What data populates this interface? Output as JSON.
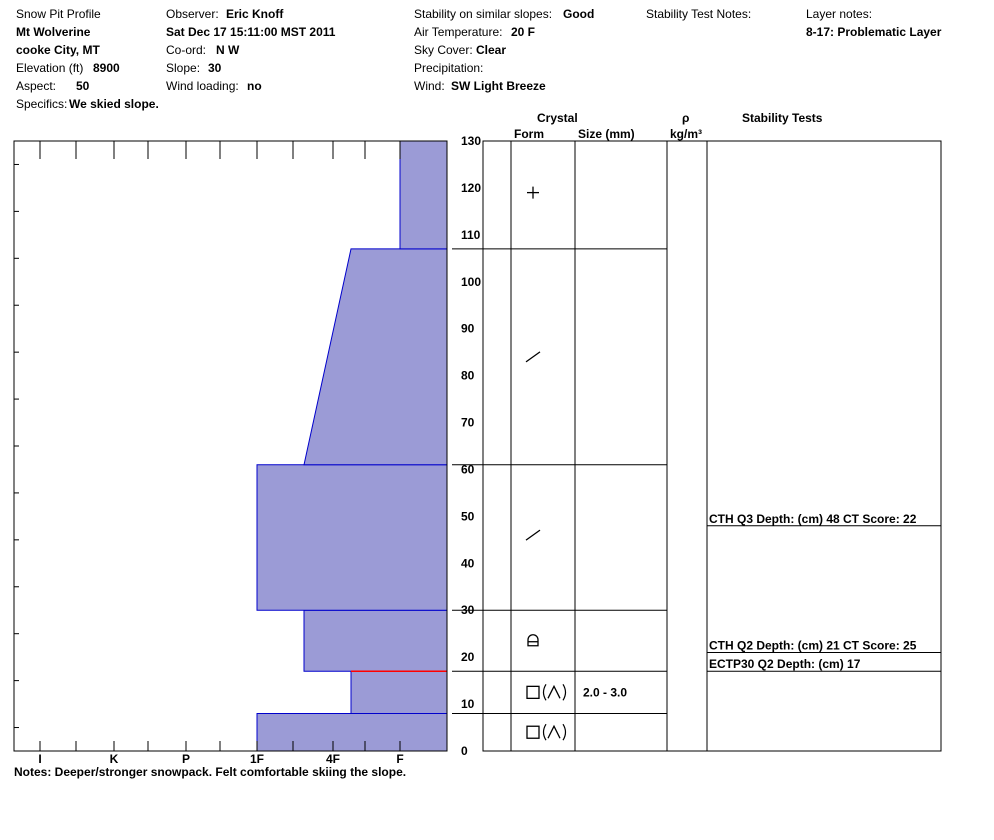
{
  "header": {
    "col1": {
      "title": "Snow Pit Profile",
      "location": "Mt Wolverine",
      "region": "cooke City, MT",
      "elevation_label": "Elevation (ft)",
      "elevation_value": "8900",
      "aspect_label": "Aspect:",
      "aspect_value": "50",
      "specifics_label": "Specifics:",
      "specifics_value": "We skied slope."
    },
    "col2": {
      "observer_label": "Observer:",
      "observer_value": "Eric Knoff",
      "date": "Sat Dec 17 15:11:00 MST 2011",
      "coord_label": "Co-ord:",
      "coord_value": "N  W",
      "slope_label": "Slope:",
      "slope_value": "30",
      "wind_loading_label": "Wind loading:",
      "wind_loading_value": "no"
    },
    "col3": {
      "stability_label": "Stability on similar slopes:",
      "stability_value": "Good",
      "air_temp_label": "Air Temperature:",
      "air_temp_value": "20 F",
      "sky_label": "Sky Cover:",
      "sky_value": "Clear",
      "precip_label": "Precipitation:",
      "wind_label": "Wind:",
      "wind_value": "SW Light Breeze"
    },
    "col4": {
      "stability_test_notes_label": "Stability Test Notes:"
    },
    "col5": {
      "layer_notes_label": "Layer notes:",
      "layer_note_1": "8-17: Problematic Layer"
    }
  },
  "notes": "Notes:  Deeper/stronger snowpack.  Felt comfortable skiing the slope.",
  "columns": {
    "crystal": "Crystal",
    "form": "Form",
    "size": "Size (mm)",
    "rho": "ρ",
    "density_unit": "kg/m³",
    "stability_tests": "Stability Tests"
  },
  "colors": {
    "hardness_fill": "#9b9bd6",
    "hardness_edge": "#0000cc",
    "problem_layer": "#ff0000"
  },
  "chart_data": {
    "type": "snow-profile",
    "y_axis": {
      "range": [
        0,
        130
      ],
      "ticks": [
        0,
        10,
        20,
        30,
        40,
        50,
        60,
        70,
        80,
        90,
        100,
        110,
        120,
        130
      ]
    },
    "hardness_scale": [
      "I",
      "K",
      "P",
      "1F",
      "4F",
      "F"
    ],
    "hardness_profile": [
      {
        "bottom": 0,
        "top": 8,
        "hardness_bottom": "1F",
        "hardness_top": "1F"
      },
      {
        "bottom": 8,
        "top": 17,
        "hardness_bottom": "4F-",
        "hardness_top": "4F-"
      },
      {
        "bottom": 17,
        "top": 30,
        "hardness_bottom": "4F+",
        "hardness_top": "4F+"
      },
      {
        "bottom": 30,
        "top": 61,
        "hardness_bottom": "1F",
        "hardness_top": "1F"
      },
      {
        "bottom": 61,
        "top": 107,
        "hardness_bottom": "4F+",
        "hardness_top": "4F-"
      },
      {
        "bottom": 107,
        "top": 130,
        "hardness_bottom": "F",
        "hardness_top": "F"
      }
    ],
    "problem_layer_depth": 17,
    "layer_boundaries": [
      8,
      17,
      30,
      61,
      107
    ],
    "crystals": [
      {
        "center": 4,
        "form": "faceted-rounded",
        "size": ""
      },
      {
        "center": 12.5,
        "form": "faceted-rounded",
        "size": "2.0 - 3.0"
      },
      {
        "center": 23.5,
        "form": "mixed-form",
        "size": ""
      },
      {
        "center": 46,
        "form": "decomposing-fragments",
        "size": ""
      },
      {
        "center": 84,
        "form": "decomposing-fragments",
        "size": ""
      },
      {
        "center": 119,
        "form": "new-snow",
        "size": ""
      }
    ],
    "stability_tests": [
      {
        "depth": 48,
        "label": "CTH Q3 Depth: (cm) 48 CT Score: 22"
      },
      {
        "depth": 21,
        "label": "CTH Q2 Depth: (cm) 21 CT Score: 25"
      },
      {
        "depth": 17,
        "label": "ECTP30 Q2 Depth: (cm) 17"
      }
    ]
  }
}
